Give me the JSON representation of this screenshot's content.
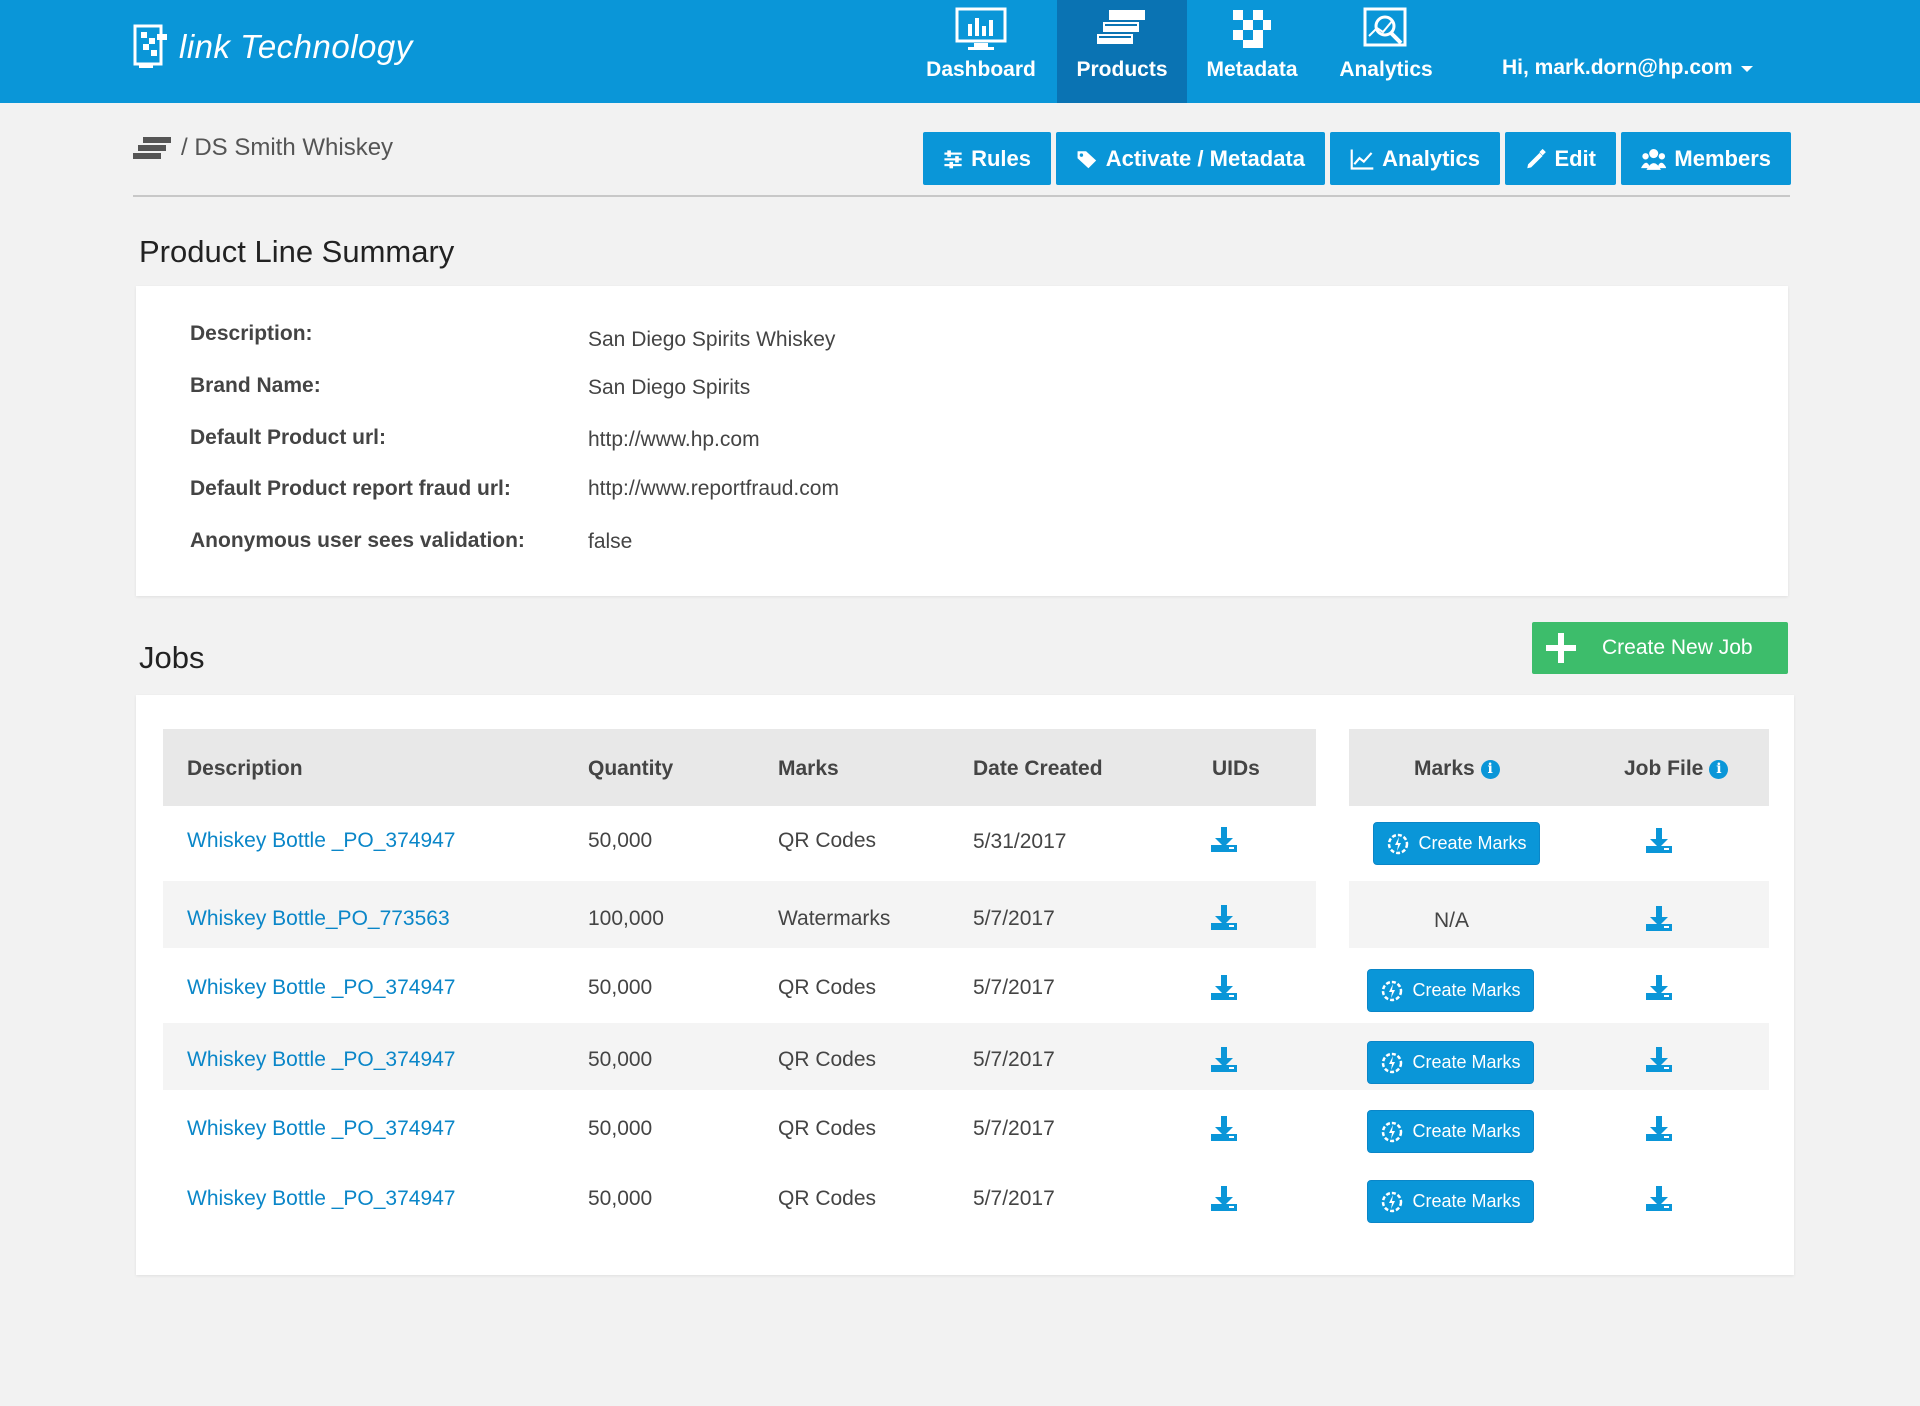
{
  "brand": {
    "name": "link Technology"
  },
  "nav": {
    "items": [
      {
        "label": "Dashboard",
        "icon": "dashboard-icon"
      },
      {
        "label": "Products",
        "icon": "products-icon",
        "active": true
      },
      {
        "label": "Metadata",
        "icon": "metadata-icon"
      },
      {
        "label": "Analytics",
        "icon": "analytics-icon"
      }
    ],
    "user": "Hi, mark.dorn@hp.com"
  },
  "breadcrumb": {
    "current": "/ DS Smith Whiskey"
  },
  "actions": {
    "rules": "Rules",
    "activate": "Activate / Metadata",
    "analytics": "Analytics",
    "edit": "Edit",
    "members": "Members"
  },
  "summary": {
    "title": "Product Line Summary",
    "fields": [
      {
        "label": "Description:",
        "value": "San Diego Spirits Whiskey"
      },
      {
        "label": "Brand Name:",
        "value": "San Diego Spirits"
      },
      {
        "label": "Default Product url:",
        "value": "http://www.hp.com"
      },
      {
        "label": "Default Product report fraud url:",
        "value": "http://www.reportfraud.com"
      },
      {
        "label": "Anonymous user sees validation:",
        "value": "false"
      }
    ]
  },
  "jobs": {
    "title": "Jobs",
    "create_label": "Create New Job",
    "columns": {
      "description": "Description",
      "quantity": "Quantity",
      "marks": "Marks",
      "date": "Date Created",
      "uids": "UIDs",
      "marks_action": "Marks",
      "job_file": "Job File"
    },
    "create_marks_label": "Create Marks",
    "rows": [
      {
        "description": "Whiskey Bottle _PO_374947",
        "quantity": "50,000",
        "marks": "QR Codes",
        "date": "5/31/2017",
        "action": "Create Marks"
      },
      {
        "description": "Whiskey Bottle_PO_773563",
        "quantity": "100,000",
        "marks": "Watermarks",
        "date": "5/7/2017",
        "action": "N/A"
      },
      {
        "description": "Whiskey Bottle _PO_374947",
        "quantity": "50,000",
        "marks": "QR Codes",
        "date": "5/7/2017",
        "action": "Create Marks"
      },
      {
        "description": "Whiskey Bottle _PO_374947",
        "quantity": "50,000",
        "marks": "QR Codes",
        "date": "5/7/2017",
        "action": "Create Marks"
      },
      {
        "description": "Whiskey Bottle _PO_374947",
        "quantity": "50,000",
        "marks": "QR Codes",
        "date": "5/7/2017",
        "action": "Create Marks"
      },
      {
        "description": "Whiskey Bottle _PO_374947",
        "quantity": "50,000",
        "marks": "QR Codes",
        "date": "5/7/2017",
        "action": "Create Marks"
      }
    ]
  },
  "colors": {
    "primary": "#0a96d8",
    "primary_dark": "#0a73b3",
    "success": "#3dbd6b",
    "link": "#0a86c8"
  }
}
